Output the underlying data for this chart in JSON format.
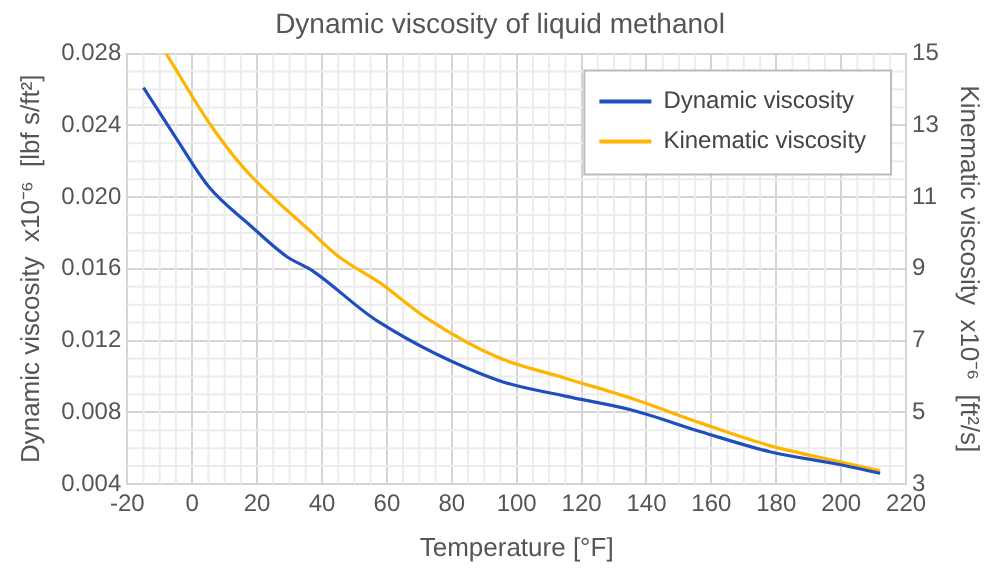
{
  "chart_data": {
    "type": "line",
    "title": "Dynamic viscosity of liquid methanol",
    "xlabel": "Temperature [°F]",
    "ylabel": "Dynamic viscosity  x10⁻⁶  [lbf s/ft²]",
    "y2label": "Kinematic viscosity  x10⁻⁶  [ft²/s]",
    "xlim": [
      -20,
      220
    ],
    "xticks": [
      -20,
      0,
      20,
      40,
      60,
      80,
      100,
      120,
      140,
      160,
      180,
      200,
      220
    ],
    "ylim": [
      0.004,
      0.028
    ],
    "yticks": [
      0.004,
      0.008,
      0.012,
      0.016,
      {
        "value": 0.02,
        "label": "0.020"
      },
      0.024,
      0.028
    ],
    "y2lim": [
      3,
      15
    ],
    "y2ticks": [
      3,
      5,
      7,
      9,
      11,
      13,
      15
    ],
    "grid": true,
    "legend": "top right",
    "line_style": "solid",
    "marker": "none",
    "series": [
      {
        "name": "Dynamic viscosity",
        "color": "#1f4fbf",
        "x": [
          -15,
          -5,
          5,
          18,
          29,
          37,
          57,
          94,
          115,
          136,
          157,
          178,
          199,
          212
        ],
        "values": [
          0.0261,
          0.0233,
          0.0206,
          0.0184,
          0.0167,
          0.0159,
          0.0131,
          0.0098,
          0.0089,
          0.0081,
          0.0069,
          0.0058,
          0.0051,
          0.0046
        ]
      },
      {
        "name": "Kinematic viscosity",
        "color": "#ffb400",
        "axis": "y2",
        "x": [
          -8,
          5,
          16,
          37,
          45,
          58,
          72,
          94,
          115,
          136,
          157,
          178,
          199,
          212
        ],
        "values": [
          15.0,
          13.1,
          11.8,
          10.0,
          9.35,
          8.6,
          7.64,
          6.54,
          5.95,
          5.37,
          4.69,
          4.07,
          3.63,
          3.37
        ]
      }
    ]
  }
}
